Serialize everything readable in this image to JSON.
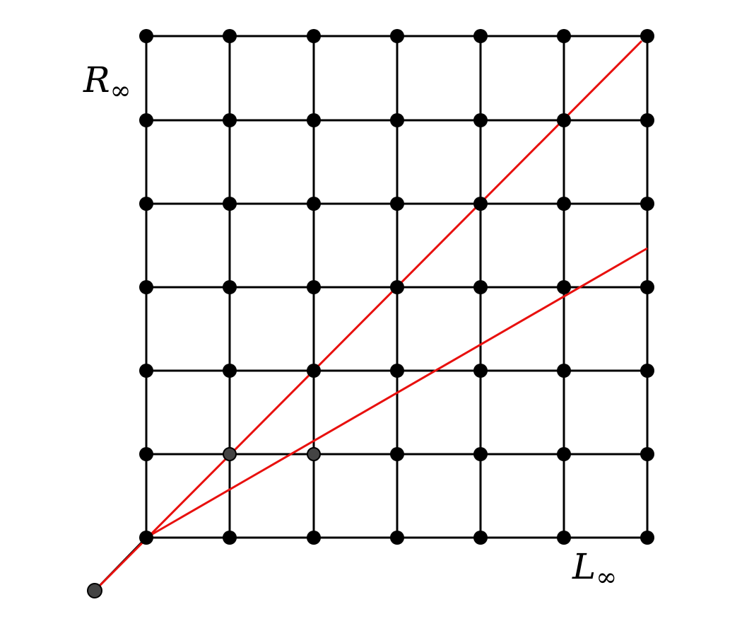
{
  "labels": {
    "top_left": {
      "main": "R",
      "subscript": "∞"
    },
    "bottom_right": {
      "main": "L",
      "subscript": "∞"
    }
  }
}
